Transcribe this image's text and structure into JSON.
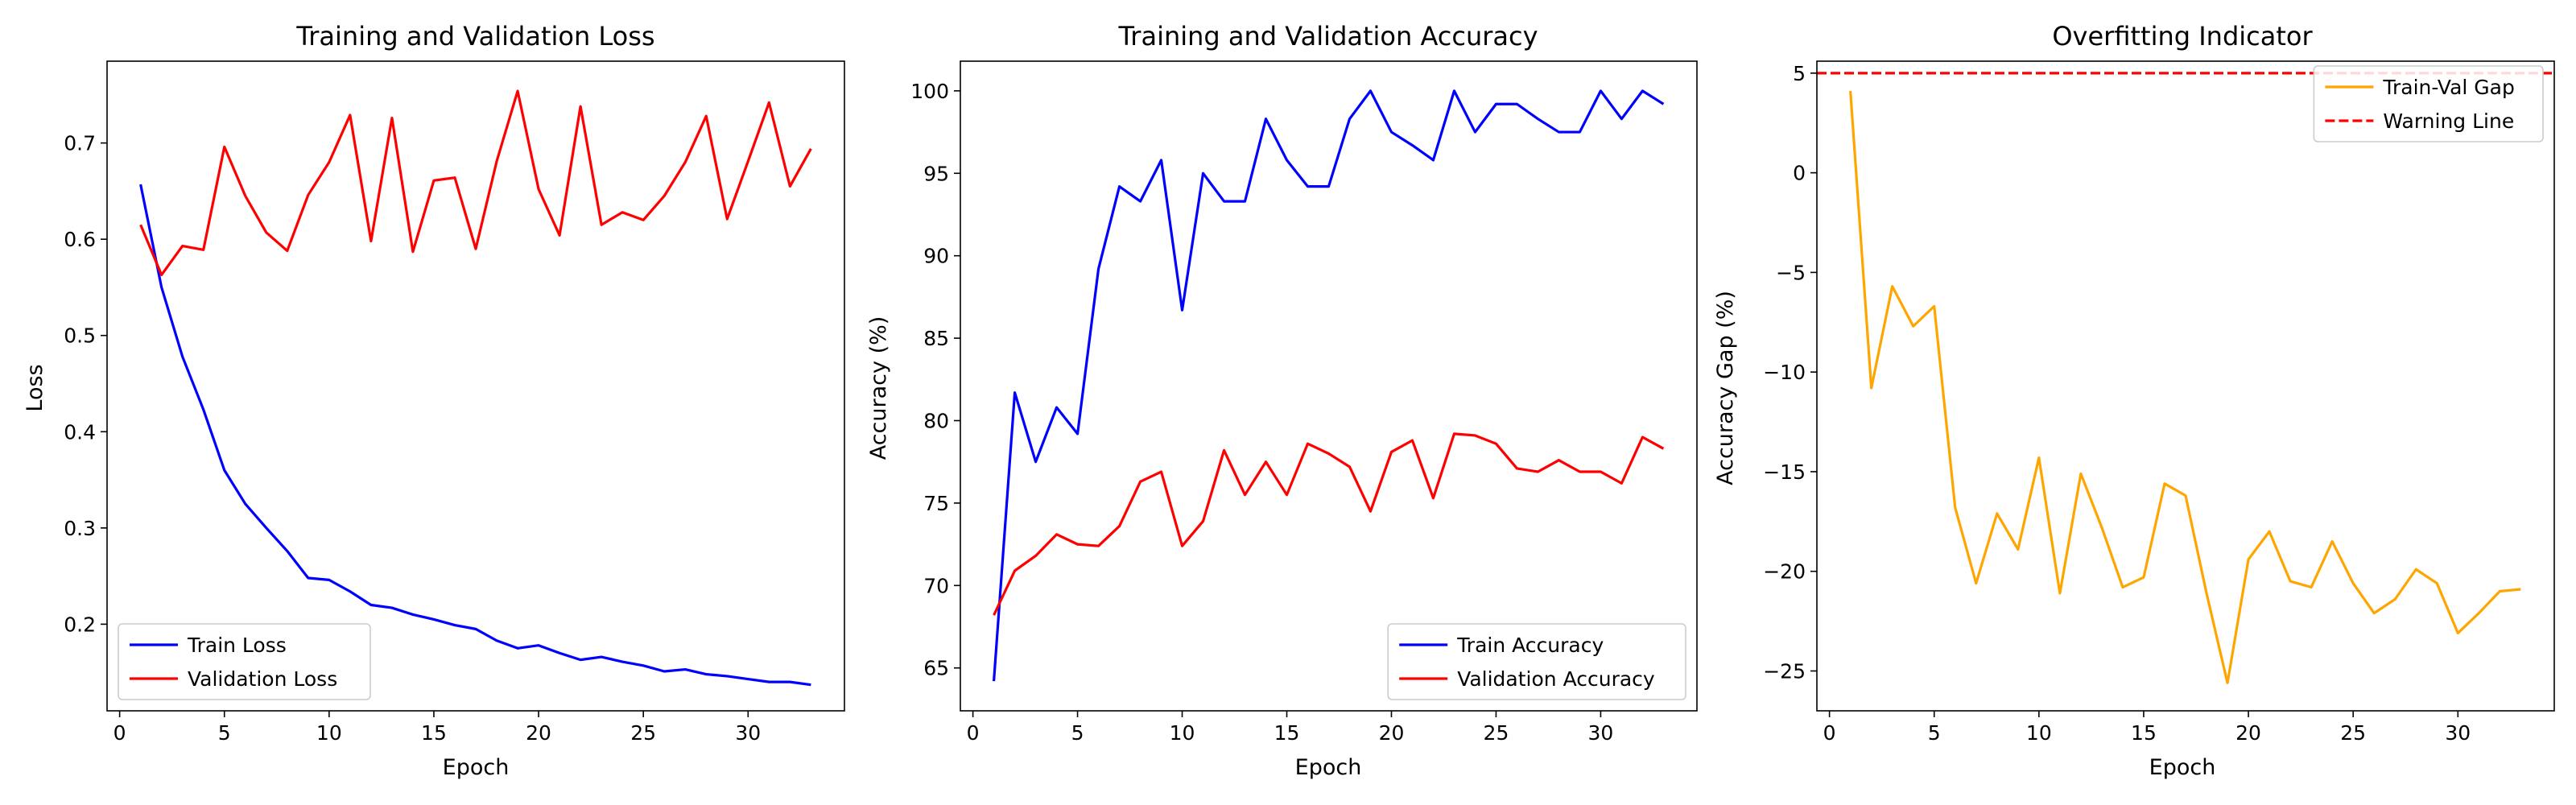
{
  "chart_data": [
    {
      "type": "line",
      "title": "Training and Validation Loss",
      "xlabel": "Epoch",
      "ylabel": "Loss",
      "xlim": [
        -0.6,
        34.6
      ],
      "ylim": [
        0.11,
        0.785
      ],
      "xticks": [
        0,
        5,
        10,
        15,
        20,
        25,
        30
      ],
      "yticks": [
        0.2,
        0.3,
        0.4,
        0.5,
        0.6,
        0.7
      ],
      "tick_decimals": 1,
      "legend_position": "lower-left",
      "x": [
        1,
        2,
        3,
        4,
        5,
        6,
        7,
        8,
        9,
        10,
        11,
        12,
        13,
        14,
        15,
        16,
        17,
        18,
        19,
        20,
        21,
        22,
        23,
        24,
        25,
        26,
        27,
        28,
        29,
        30,
        31,
        32,
        33
      ],
      "series": [
        {
          "name": "Train Loss",
          "color": "#0000ff",
          "values": [
            0.657,
            0.55,
            0.478,
            0.423,
            0.36,
            0.325,
            0.3,
            0.276,
            0.248,
            0.246,
            0.234,
            0.22,
            0.217,
            0.21,
            0.205,
            0.199,
            0.195,
            0.183,
            0.175,
            0.178,
            0.17,
            0.163,
            0.166,
            0.161,
            0.157,
            0.151,
            0.153,
            0.148,
            0.146,
            0.143,
            0.14,
            0.14,
            0.137
          ]
        },
        {
          "name": "Validation Loss",
          "color": "#ff0000",
          "values": [
            0.615,
            0.563,
            0.593,
            0.589,
            0.696,
            0.645,
            0.607,
            0.588,
            0.646,
            0.68,
            0.729,
            0.598,
            0.726,
            0.587,
            0.661,
            0.664,
            0.59,
            0.681,
            0.754,
            0.652,
            0.604,
            0.738,
            0.615,
            0.628,
            0.62,
            0.645,
            0.68,
            0.728,
            0.621,
            0.681,
            0.742,
            0.655,
            0.694
          ]
        }
      ]
    },
    {
      "type": "line",
      "title": "Training and Validation Accuracy",
      "xlabel": "Epoch",
      "ylabel": "Accuracy (%)",
      "xlim": [
        -0.6,
        34.6
      ],
      "ylim": [
        62.4,
        101.8
      ],
      "xticks": [
        0,
        5,
        10,
        15,
        20,
        25,
        30
      ],
      "yticks": [
        65,
        70,
        75,
        80,
        85,
        90,
        95,
        100
      ],
      "tick_decimals": 0,
      "legend_position": "lower-right",
      "x": [
        1,
        2,
        3,
        4,
        5,
        6,
        7,
        8,
        9,
        10,
        11,
        12,
        13,
        14,
        15,
        16,
        17,
        18,
        19,
        20,
        21,
        22,
        23,
        24,
        25,
        26,
        27,
        28,
        29,
        30,
        31,
        32,
        33
      ],
      "series": [
        {
          "name": "Train Accuracy",
          "color": "#0000ff",
          "values": [
            64.2,
            81.7,
            77.5,
            80.8,
            79.2,
            89.2,
            94.2,
            93.3,
            95.8,
            86.7,
            95.0,
            93.3,
            93.3,
            98.3,
            95.8,
            94.2,
            94.2,
            98.3,
            100.0,
            97.5,
            96.7,
            95.8,
            100.0,
            97.5,
            99.2,
            99.2,
            98.3,
            97.5,
            97.5,
            100.0,
            98.3,
            100.0,
            99.2
          ]
        },
        {
          "name": "Validation Accuracy",
          "color": "#ff0000",
          "values": [
            68.2,
            70.9,
            71.8,
            73.1,
            72.5,
            72.4,
            73.6,
            76.3,
            76.9,
            72.4,
            73.9,
            78.2,
            75.5,
            77.5,
            75.5,
            78.6,
            78.0,
            77.2,
            74.5,
            78.1,
            78.8,
            75.3,
            79.2,
            79.1,
            78.6,
            77.1,
            76.9,
            77.6,
            76.9,
            76.9,
            76.2,
            79.0,
            78.3
          ]
        }
      ]
    },
    {
      "type": "line",
      "title": "Overfitting Indicator",
      "xlabel": "Epoch",
      "ylabel": "Accuracy Gap (%)",
      "xlim": [
        -0.6,
        34.6
      ],
      "ylim": [
        -27.0,
        5.6
      ],
      "xticks": [
        0,
        5,
        10,
        15,
        20,
        25,
        30
      ],
      "yticks": [
        -25,
        -20,
        -15,
        -10,
        -5,
        0,
        5
      ],
      "tick_decimals": 0,
      "legend_position": "upper-right",
      "x": [
        1,
        2,
        3,
        4,
        5,
        6,
        7,
        8,
        9,
        10,
        11,
        12,
        13,
        14,
        15,
        16,
        17,
        18,
        19,
        20,
        21,
        22,
        23,
        24,
        25,
        26,
        27,
        28,
        29,
        30,
        31,
        32,
        33
      ],
      "series": [
        {
          "name": "Train-Val Gap",
          "color": "#ffa500",
          "values": [
            4.1,
            -10.8,
            -5.7,
            -7.7,
            -6.7,
            -16.8,
            -20.6,
            -17.1,
            -18.9,
            -14.3,
            -21.1,
            -15.1,
            -17.8,
            -20.8,
            -20.3,
            -15.6,
            -16.2,
            -21.1,
            -25.6,
            -19.4,
            -18.0,
            -20.5,
            -20.8,
            -18.5,
            -20.6,
            -22.1,
            -21.4,
            -19.9,
            -20.6,
            -23.1,
            -22.1,
            -21.0,
            -20.9
          ]
        }
      ],
      "reference_lines": [
        {
          "name": "Warning Line",
          "y": 5,
          "color": "#ff0000",
          "style": "dashed"
        }
      ]
    }
  ]
}
